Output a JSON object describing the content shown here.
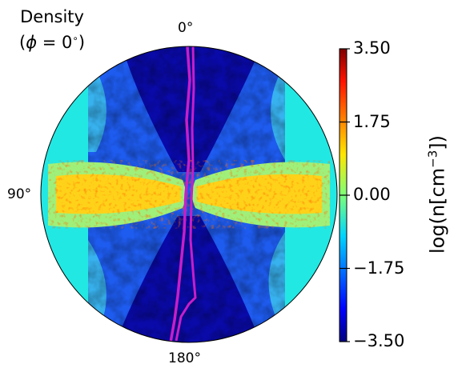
{
  "chart_data": {
    "type": "heatmap",
    "projection": "polar",
    "title": "Density",
    "subtitle_prefix": "(",
    "subtitle_symbol": "ϕ",
    "subtitle_value": " = 0",
    "subtitle_degree": "∘",
    "subtitle_suffix": ")",
    "angle_labels": [
      "0°",
      "90°",
      "180°"
    ],
    "colorbar": {
      "label_prefix": "log(n[cm",
      "label_sup": "−3",
      "label_suffix": "])",
      "range": [
        -3.5,
        3.5
      ],
      "colormap": "jet",
      "ticks": [
        3.5,
        1.75,
        0.0,
        -1.75,
        -3.5
      ],
      "tick_labels": [
        "3.50",
        "1.75",
        "0.00",
        "−1.75",
        "−3.50"
      ]
    },
    "contour_color": "#c81ec8",
    "description_regions": [
      {
        "region": "polar cones",
        "log_density": -3.2
      },
      {
        "region": "outer halo",
        "log_density": -1.0
      },
      {
        "region": "equatorial disk",
        "log_density": 1.5
      }
    ]
  }
}
